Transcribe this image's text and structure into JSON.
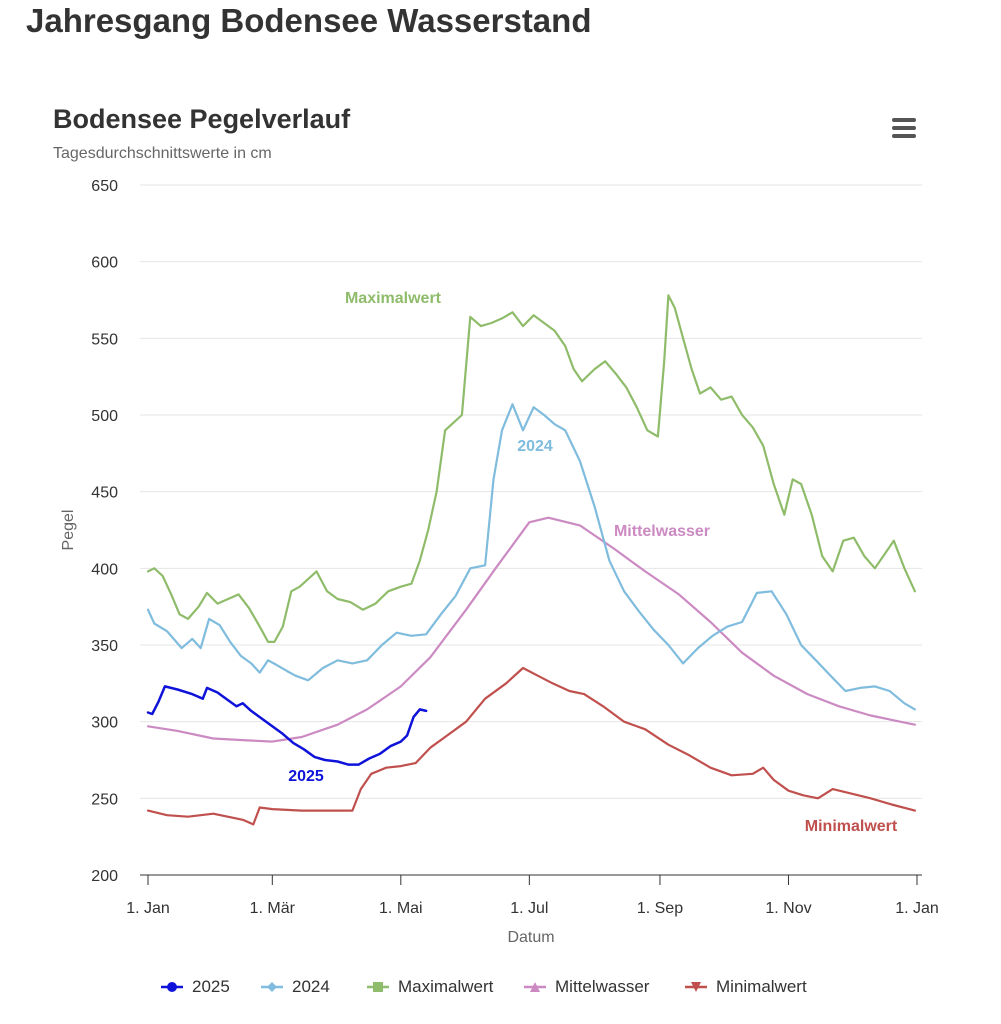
{
  "page": {
    "title": "Jahresgang Bodensee Wasserstand"
  },
  "colors": {
    "s2025": "#0f13d9",
    "s2024": "#7fbcdd",
    "max": "#8fbc6a",
    "mittel": "#cc8ac2",
    "min": "#c0504d",
    "grid": "#e6e6e6",
    "axis": "#333333"
  },
  "chart_data": {
    "type": "line",
    "title": "Bodensee Pegelverlauf",
    "subtitle": "Tagesdurchschnittswerte in cm",
    "xlabel": "Datum",
    "ylabel": "Pegel",
    "ylim": [
      200,
      650
    ],
    "yticks": [
      "200",
      "250",
      "300",
      "350",
      "400",
      "450",
      "500",
      "550",
      "600",
      "650"
    ],
    "xtick_labels": [
      "1. Jan",
      "1. Mär",
      "1. Mai",
      "1. Jul",
      "1. Sep",
      "1. Nov",
      "1. Jan"
    ],
    "x_unit": "date",
    "grid": true,
    "legend_position": "bottom",
    "menu_icon": "hamburger-menu-icon",
    "series": [
      {
        "name": "2025",
        "color_key": "s2025",
        "marker": "circle",
        "data_label": "2025",
        "points": [
          [
            "01-01",
            306
          ],
          [
            "01-03",
            305
          ],
          [
            "01-06",
            313
          ],
          [
            "01-09",
            323
          ],
          [
            "01-15",
            321
          ],
          [
            "01-22",
            318
          ],
          [
            "01-27",
            315
          ],
          [
            "01-29",
            322
          ],
          [
            "02-03",
            319
          ],
          [
            "02-08",
            314
          ],
          [
            "02-12",
            310
          ],
          [
            "02-15",
            312
          ],
          [
            "02-19",
            307
          ],
          [
            "02-24",
            302
          ],
          [
            "03-01",
            297
          ],
          [
            "03-06",
            292
          ],
          [
            "03-11",
            286
          ],
          [
            "03-16",
            282
          ],
          [
            "03-21",
            277
          ],
          [
            "03-26",
            275
          ],
          [
            "04-01",
            274
          ],
          [
            "04-06",
            272
          ],
          [
            "04-11",
            272
          ],
          [
            "04-16",
            276
          ],
          [
            "04-21",
            279
          ],
          [
            "04-26",
            284
          ],
          [
            "05-01",
            287
          ],
          [
            "05-04",
            291
          ],
          [
            "05-07",
            303
          ],
          [
            "05-10",
            308
          ],
          [
            "05-13",
            307
          ]
        ]
      },
      {
        "name": "2024",
        "color_key": "s2024",
        "marker": "diamond",
        "data_label": "2024",
        "points": [
          [
            "01-01",
            373
          ],
          [
            "01-04",
            364
          ],
          [
            "01-10",
            359
          ],
          [
            "01-17",
            348
          ],
          [
            "01-22",
            354
          ],
          [
            "01-26",
            348
          ],
          [
            "01-30",
            367
          ],
          [
            "02-04",
            363
          ],
          [
            "02-09",
            352
          ],
          [
            "02-14",
            343
          ],
          [
            "02-19",
            338
          ],
          [
            "02-23",
            332
          ],
          [
            "02-27",
            340
          ],
          [
            "03-03",
            337
          ],
          [
            "03-08",
            333
          ],
          [
            "03-12",
            330
          ],
          [
            "03-18",
            327
          ],
          [
            "03-25",
            335
          ],
          [
            "04-01",
            340
          ],
          [
            "04-08",
            338
          ],
          [
            "04-15",
            340
          ],
          [
            "04-22",
            350
          ],
          [
            "04-29",
            358
          ],
          [
            "05-06",
            356
          ],
          [
            "05-13",
            357
          ],
          [
            "05-20",
            370
          ],
          [
            "05-27",
            382
          ],
          [
            "06-03",
            400
          ],
          [
            "06-10",
            402
          ],
          [
            "06-14",
            458
          ],
          [
            "06-18",
            490
          ],
          [
            "06-23",
            507
          ],
          [
            "06-28",
            490
          ],
          [
            "07-03",
            505
          ],
          [
            "07-08",
            500
          ],
          [
            "07-13",
            494
          ],
          [
            "07-18",
            490
          ],
          [
            "07-25",
            470
          ],
          [
            "08-01",
            440
          ],
          [
            "08-08",
            405
          ],
          [
            "08-15",
            385
          ],
          [
            "08-22",
            372
          ],
          [
            "08-29",
            360
          ],
          [
            "09-05",
            350
          ],
          [
            "09-12",
            338
          ],
          [
            "09-19",
            348
          ],
          [
            "09-26",
            356
          ],
          [
            "10-03",
            362
          ],
          [
            "10-10",
            365
          ],
          [
            "10-17",
            384
          ],
          [
            "10-24",
            385
          ],
          [
            "10-31",
            370
          ],
          [
            "11-07",
            350
          ],
          [
            "11-14",
            340
          ],
          [
            "11-21",
            330
          ],
          [
            "11-28",
            320
          ],
          [
            "12-05",
            322
          ],
          [
            "12-12",
            323
          ],
          [
            "12-19",
            320
          ],
          [
            "12-26",
            312
          ],
          [
            "12-31",
            308
          ]
        ]
      },
      {
        "name": "Maximalwert",
        "color_key": "max",
        "marker": "square",
        "data_label": "Maximalwert",
        "points": [
          [
            "01-01",
            398
          ],
          [
            "01-04",
            400
          ],
          [
            "01-08",
            395
          ],
          [
            "01-12",
            383
          ],
          [
            "01-16",
            370
          ],
          [
            "01-20",
            367
          ],
          [
            "01-25",
            375
          ],
          [
            "01-29",
            384
          ],
          [
            "02-03",
            377
          ],
          [
            "02-08",
            380
          ],
          [
            "02-13",
            383
          ],
          [
            "02-18",
            374
          ],
          [
            "02-23",
            362
          ],
          [
            "02-27",
            352
          ],
          [
            "03-02",
            352
          ],
          [
            "03-06",
            362
          ],
          [
            "03-10",
            385
          ],
          [
            "03-14",
            388
          ],
          [
            "03-18",
            393
          ],
          [
            "03-22",
            398
          ],
          [
            "03-27",
            385
          ],
          [
            "04-01",
            380
          ],
          [
            "04-07",
            378
          ],
          [
            "04-13",
            373
          ],
          [
            "04-19",
            377
          ],
          [
            "04-25",
            385
          ],
          [
            "05-01",
            388
          ],
          [
            "05-06",
            390
          ],
          [
            "05-10",
            405
          ],
          [
            "05-14",
            425
          ],
          [
            "05-18",
            450
          ],
          [
            "05-22",
            490
          ],
          [
            "05-26",
            495
          ],
          [
            "05-30",
            500
          ],
          [
            "06-03",
            564
          ],
          [
            "06-08",
            558
          ],
          [
            "06-13",
            560
          ],
          [
            "06-18",
            563
          ],
          [
            "06-23",
            567
          ],
          [
            "06-28",
            558
          ],
          [
            "07-03",
            565
          ],
          [
            "07-08",
            560
          ],
          [
            "07-13",
            555
          ],
          [
            "07-18",
            545
          ],
          [
            "07-22",
            530
          ],
          [
            "07-26",
            522
          ],
          [
            "08-01",
            530
          ],
          [
            "08-06",
            535
          ],
          [
            "08-11",
            527
          ],
          [
            "08-16",
            518
          ],
          [
            "08-21",
            505
          ],
          [
            "08-26",
            490
          ],
          [
            "08-31",
            486
          ],
          [
            "09-03",
            535
          ],
          [
            "09-05",
            578
          ],
          [
            "09-08",
            570
          ],
          [
            "09-12",
            550
          ],
          [
            "09-16",
            530
          ],
          [
            "09-20",
            514
          ],
          [
            "09-25",
            518
          ],
          [
            "09-30",
            510
          ],
          [
            "10-05",
            512
          ],
          [
            "10-10",
            500
          ],
          [
            "10-15",
            492
          ],
          [
            "10-20",
            480
          ],
          [
            "10-25",
            455
          ],
          [
            "10-30",
            435
          ],
          [
            "11-03",
            458
          ],
          [
            "11-07",
            455
          ],
          [
            "11-12",
            435
          ],
          [
            "11-17",
            408
          ],
          [
            "11-22",
            398
          ],
          [
            "11-27",
            418
          ],
          [
            "12-02",
            420
          ],
          [
            "12-07",
            408
          ],
          [
            "12-12",
            400
          ],
          [
            "12-17",
            410
          ],
          [
            "12-21",
            418
          ],
          [
            "12-26",
            400
          ],
          [
            "12-31",
            385
          ]
        ]
      },
      {
        "name": "Mittelwasser",
        "color_key": "mittel",
        "marker": "triangle",
        "data_label": "Mittelwasser",
        "points": [
          [
            "01-01",
            297
          ],
          [
            "01-15",
            294
          ],
          [
            "02-01",
            289
          ],
          [
            "02-15",
            288
          ],
          [
            "03-01",
            287
          ],
          [
            "03-15",
            290
          ],
          [
            "04-01",
            298
          ],
          [
            "04-15",
            308
          ],
          [
            "05-01",
            323
          ],
          [
            "05-15",
            342
          ],
          [
            "06-01",
            373
          ],
          [
            "06-15",
            400
          ],
          [
            "07-01",
            430
          ],
          [
            "07-10",
            433
          ],
          [
            "07-25",
            428
          ],
          [
            "08-10",
            413
          ],
          [
            "08-25",
            398
          ],
          [
            "09-10",
            383
          ],
          [
            "09-25",
            365
          ],
          [
            "10-10",
            345
          ],
          [
            "10-25",
            330
          ],
          [
            "11-10",
            318
          ],
          [
            "11-25",
            310
          ],
          [
            "12-10",
            304
          ],
          [
            "12-31",
            298
          ]
        ]
      },
      {
        "name": "Minimalwert",
        "color_key": "min",
        "marker": "triangle-down",
        "data_label": "Minimalwert",
        "points": [
          [
            "01-01",
            242
          ],
          [
            "01-10",
            239
          ],
          [
            "01-20",
            238
          ],
          [
            "02-01",
            240
          ],
          [
            "02-15",
            236
          ],
          [
            "02-20",
            233
          ],
          [
            "02-23",
            244
          ],
          [
            "03-01",
            243
          ],
          [
            "03-15",
            242
          ],
          [
            "04-01",
            242
          ],
          [
            "04-08",
            242
          ],
          [
            "04-12",
            256
          ],
          [
            "04-17",
            266
          ],
          [
            "04-24",
            270
          ],
          [
            "05-01",
            271
          ],
          [
            "05-08",
            273
          ],
          [
            "05-15",
            283
          ],
          [
            "05-22",
            290
          ],
          [
            "06-01",
            300
          ],
          [
            "06-10",
            315
          ],
          [
            "06-20",
            325
          ],
          [
            "06-28",
            335
          ],
          [
            "07-05",
            330
          ],
          [
            "07-12",
            325
          ],
          [
            "07-20",
            320
          ],
          [
            "07-27",
            318
          ],
          [
            "08-05",
            310
          ],
          [
            "08-15",
            300
          ],
          [
            "08-25",
            295
          ],
          [
            "09-05",
            285
          ],
          [
            "09-15",
            278
          ],
          [
            "09-25",
            270
          ],
          [
            "10-05",
            265
          ],
          [
            "10-15",
            266
          ],
          [
            "10-20",
            270
          ],
          [
            "10-25",
            262
          ],
          [
            "11-01",
            255
          ],
          [
            "11-08",
            252
          ],
          [
            "11-15",
            250
          ],
          [
            "11-22",
            256
          ],
          [
            "12-01",
            253
          ],
          [
            "12-10",
            250
          ],
          [
            "12-20",
            246
          ],
          [
            "12-31",
            242
          ]
        ]
      }
    ]
  }
}
